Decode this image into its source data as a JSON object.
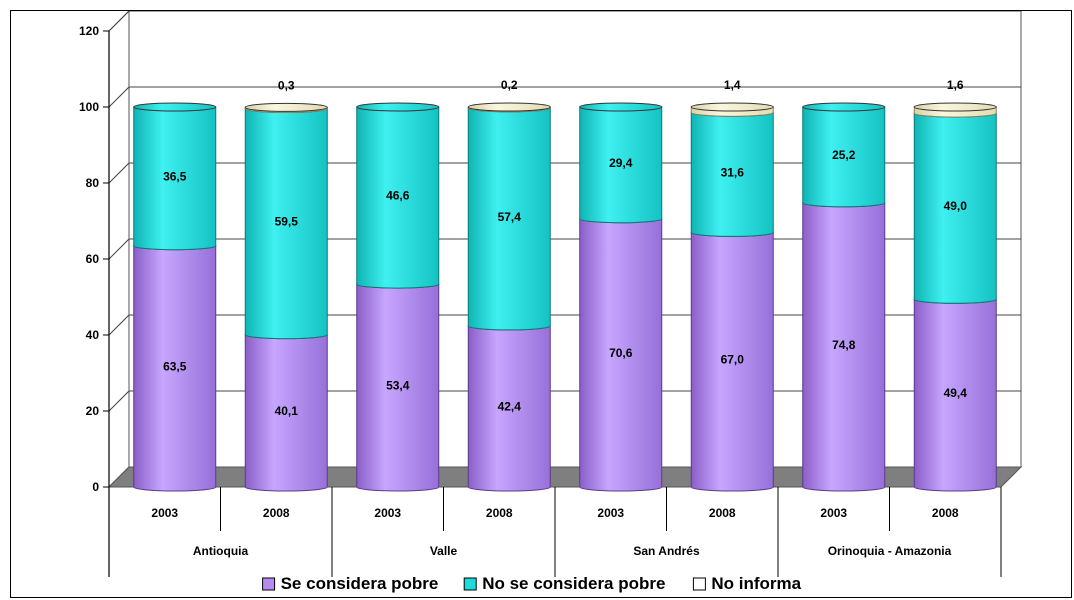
{
  "chart_data": {
    "type": "bar",
    "stacked": true,
    "three_d": true,
    "title": "",
    "xlabel": "",
    "ylabel": "",
    "ylim": [
      0,
      120
    ],
    "yticks": [
      0,
      20,
      40,
      60,
      80,
      100,
      120
    ],
    "grid": true,
    "legend_position": "bottom",
    "categories": [
      "2003",
      "2008",
      "2003",
      "2008",
      "2003",
      "2008",
      "2003",
      "2008"
    ],
    "groups": [
      {
        "label": "Antioquia",
        "span": 2
      },
      {
        "label": "Valle",
        "span": 2
      },
      {
        "label": "San Andrés",
        "span": 2
      },
      {
        "label": "Orinoquia - Amazonia",
        "span": 2
      }
    ],
    "series": [
      {
        "name": "Se considera pobre",
        "color": "#b48cf0",
        "values": [
          63.5,
          40.1,
          53.4,
          42.4,
          70.6,
          67.0,
          74.8,
          49.4
        ],
        "labels": [
          "63,5",
          "40,1",
          "53,4",
          "42,4",
          "70,6",
          "67,0",
          "74,8",
          "49,4"
        ]
      },
      {
        "name": "No se considera pobre",
        "color": "#1fdcdc",
        "values": [
          36.5,
          59.5,
          46.6,
          57.4,
          29.4,
          31.6,
          25.2,
          49.0
        ],
        "labels": [
          "36,5",
          "59,5",
          "46,6",
          "57,4",
          "29,4",
          "31,6",
          "25,2",
          "49,0"
        ]
      },
      {
        "name": "No informa",
        "color": "#f3eecb",
        "values": [
          0,
          0.3,
          0,
          0.2,
          0,
          1.4,
          0,
          1.6
        ],
        "labels": [
          "",
          "0,3",
          "",
          "0,2",
          "",
          "1,4",
          "",
          "1,6"
        ]
      }
    ]
  }
}
